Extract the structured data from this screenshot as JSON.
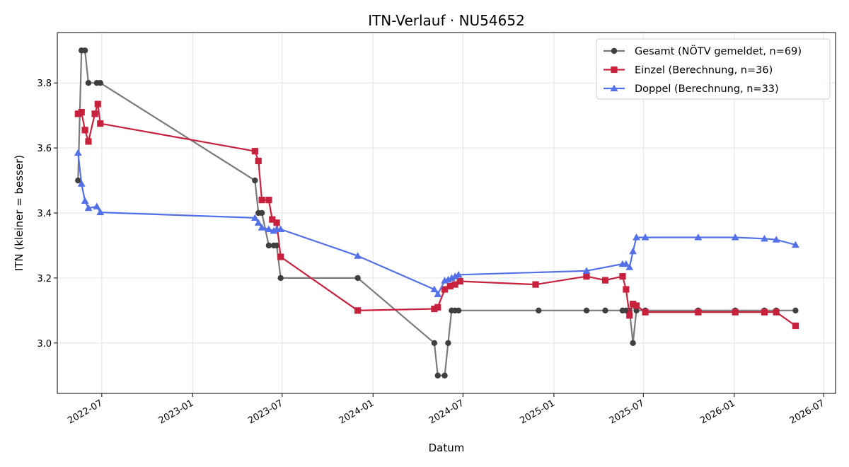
{
  "chart_data": {
    "type": "line",
    "title": "ITN-Verlauf · NU54652",
    "xlabel": "Datum",
    "ylabel": "ITN  (kleiner = besser)",
    "xlim": [
      "2022-04-02",
      "2026-07-25"
    ],
    "ylim": [
      2.845,
      3.955
    ],
    "x_ticks": [
      "2022-07-01",
      "2023-01-01",
      "2023-07-01",
      "2024-01-01",
      "2024-07-01",
      "2025-01-01",
      "2025-07-01",
      "2026-01-01",
      "2026-07-01"
    ],
    "x_tick_labels": [
      "2022-07",
      "2023-01",
      "2023-07",
      "2024-01",
      "2024-07",
      "2025-01",
      "2025-07",
      "2026-01",
      "2026-07"
    ],
    "y_ticks": [
      3.0,
      3.2,
      3.4,
      3.6,
      3.8
    ],
    "y_tick_labels": [
      "3.0",
      "3.2",
      "3.4",
      "3.6",
      "3.8"
    ],
    "grid": true,
    "legend_position": "top-right",
    "series": [
      {
        "name": "Gesamt (NÖTV gemeldet, n=69)",
        "color": "#3f3f3f",
        "line_color": "#7a7a7a",
        "marker": "circle",
        "points": [
          [
            "2022-05-14",
            3.5
          ],
          [
            "2022-05-21",
            3.9
          ],
          [
            "2022-05-28",
            3.9
          ],
          [
            "2022-06-04",
            3.8
          ],
          [
            "2022-06-21",
            3.8
          ],
          [
            "2022-06-28",
            3.8
          ],
          [
            "2023-05-07",
            3.5
          ],
          [
            "2023-05-14",
            3.4
          ],
          [
            "2023-05-21",
            3.4
          ],
          [
            "2023-06-04",
            3.3
          ],
          [
            "2023-06-14",
            3.3
          ],
          [
            "2023-06-20",
            3.3
          ],
          [
            "2023-06-28",
            3.2
          ],
          [
            "2023-12-01",
            3.2
          ],
          [
            "2024-05-04",
            3.0
          ],
          [
            "2024-05-11",
            2.9
          ],
          [
            "2024-05-25",
            2.9
          ],
          [
            "2024-06-01",
            3.0
          ],
          [
            "2024-06-08",
            3.1
          ],
          [
            "2024-06-15",
            3.1
          ],
          [
            "2024-06-22",
            3.1
          ],
          [
            "2024-12-01",
            3.1
          ],
          [
            "2025-03-08",
            3.1
          ],
          [
            "2025-04-15",
            3.1
          ],
          [
            "2025-05-20",
            3.1
          ],
          [
            "2025-05-27",
            3.1
          ],
          [
            "2025-06-03",
            3.1
          ],
          [
            "2025-06-10",
            3.0
          ],
          [
            "2025-06-17",
            3.1
          ],
          [
            "2025-07-05",
            3.1
          ],
          [
            "2025-10-20",
            3.1
          ],
          [
            "2026-01-03",
            3.1
          ],
          [
            "2026-03-03",
            3.1
          ],
          [
            "2026-03-27",
            3.1
          ],
          [
            "2026-05-05",
            3.1
          ]
        ]
      },
      {
        "name": "Einzel (Berechnung, n=36)",
        "color": "#c8213e",
        "line_color": "#c8213e",
        "marker": "square",
        "points": [
          [
            "2022-05-14",
            3.705
          ],
          [
            "2022-05-21",
            3.71
          ],
          [
            "2022-05-28",
            3.655
          ],
          [
            "2022-06-04",
            3.62
          ],
          [
            "2022-06-17",
            3.705
          ],
          [
            "2022-06-23",
            3.735
          ],
          [
            "2022-06-28",
            3.675
          ],
          [
            "2023-05-07",
            3.59
          ],
          [
            "2023-05-14",
            3.56
          ],
          [
            "2023-05-21",
            3.44
          ],
          [
            "2023-06-04",
            3.44
          ],
          [
            "2023-06-11",
            3.38
          ],
          [
            "2023-06-20",
            3.37
          ],
          [
            "2023-06-28",
            3.265
          ],
          [
            "2023-12-01",
            3.1
          ],
          [
            "2024-05-04",
            3.105
          ],
          [
            "2024-05-11",
            3.11
          ],
          [
            "2024-05-25",
            3.165
          ],
          [
            "2024-06-05",
            3.175
          ],
          [
            "2024-06-15",
            3.18
          ],
          [
            "2024-06-25",
            3.19
          ],
          [
            "2024-11-25",
            3.18
          ],
          [
            "2025-03-08",
            3.205
          ],
          [
            "2025-04-15",
            3.193
          ],
          [
            "2025-05-20",
            3.205
          ],
          [
            "2025-05-27",
            3.165
          ],
          [
            "2025-06-03",
            3.085
          ],
          [
            "2025-06-10",
            3.12
          ],
          [
            "2025-06-17",
            3.115
          ],
          [
            "2025-07-05",
            3.095
          ],
          [
            "2025-10-20",
            3.095
          ],
          [
            "2026-01-03",
            3.095
          ],
          [
            "2026-03-03",
            3.095
          ],
          [
            "2026-03-27",
            3.095
          ],
          [
            "2026-05-05",
            3.053
          ]
        ]
      },
      {
        "name": "Doppel (Berechnung, n=33)",
        "color": "#5370e8",
        "line_color": "#5370e8",
        "marker": "triangle",
        "points": [
          [
            "2022-05-14",
            3.585
          ],
          [
            "2022-05-21",
            3.49
          ],
          [
            "2022-05-28",
            3.437
          ],
          [
            "2022-06-04",
            3.415
          ],
          [
            "2022-06-21",
            3.42
          ],
          [
            "2022-06-28",
            3.402
          ],
          [
            "2023-05-07",
            3.385
          ],
          [
            "2023-05-14",
            3.37
          ],
          [
            "2023-05-21",
            3.355
          ],
          [
            "2023-06-04",
            3.35
          ],
          [
            "2023-06-14",
            3.345
          ],
          [
            "2023-06-20",
            3.35
          ],
          [
            "2023-06-28",
            3.35
          ],
          [
            "2023-12-01",
            3.268
          ],
          [
            "2024-05-04",
            3.165
          ],
          [
            "2024-05-11",
            3.15
          ],
          [
            "2024-05-25",
            3.192
          ],
          [
            "2024-06-01",
            3.195
          ],
          [
            "2024-06-08",
            3.2
          ],
          [
            "2024-06-15",
            3.205
          ],
          [
            "2024-06-22",
            3.21
          ],
          [
            "2025-03-08",
            3.222
          ],
          [
            "2025-05-20",
            3.243
          ],
          [
            "2025-05-27",
            3.243
          ],
          [
            "2025-06-03",
            3.233
          ],
          [
            "2025-06-10",
            3.282
          ],
          [
            "2025-06-17",
            3.325
          ],
          [
            "2025-07-05",
            3.325
          ],
          [
            "2025-10-20",
            3.325
          ],
          [
            "2026-01-03",
            3.325
          ],
          [
            "2026-03-03",
            3.321
          ],
          [
            "2026-03-27",
            3.318
          ],
          [
            "2026-05-05",
            3.302
          ]
        ]
      }
    ]
  }
}
